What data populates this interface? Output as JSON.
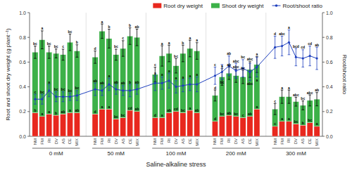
{
  "chart_data": {
    "type": "bar",
    "stacked": true,
    "categories": [
      "NM",
      "FM",
      "RI",
      "DV",
      "AS",
      "CE",
      "MIX",
      "NM",
      "FM",
      "RI",
      "DV",
      "AS",
      "CE",
      "MIX",
      "NM",
      "FM",
      "RI",
      "DV",
      "AS",
      "CE",
      "MIX",
      "NM",
      "FM",
      "RI",
      "DV",
      "AS",
      "CE",
      "MIX",
      "NM",
      "FM",
      "RI",
      "DV",
      "AS",
      "CE",
      "MIX"
    ],
    "groups": [
      "0 mM",
      "50 mM",
      "100 mM",
      "200 mM",
      "300 mM"
    ],
    "x_label": "Saline-alkaline stress",
    "y_label": "Root and shoot dry weight (g plant⁻¹)",
    "y2_label": "Root/shoot ratio",
    "ylim": [
      0,
      1
    ],
    "yticks": [
      {
        "value": 0,
        "label": "0.0"
      },
      0.2,
      0.4,
      0.6,
      0.8,
      {
        "value": 1,
        "label": "1.0"
      }
    ],
    "y2lim": [
      0,
      1
    ],
    "y2ticks": [
      {
        "value": 0,
        "label": "0.0"
      },
      0.2,
      0.4,
      0.6,
      0.8,
      {
        "value": 1,
        "label": "1.0"
      }
    ],
    "legend": "upper right",
    "series": [
      {
        "name": "Root dry weight",
        "color": "#e8281e",
        "values": [
          0.19,
          0.16,
          0.18,
          0.17,
          0.18,
          0.19,
          0.19,
          0.18,
          0.22,
          0.22,
          0.14,
          0.15,
          0.21,
          0.2,
          0.15,
          0.15,
          0.19,
          0.2,
          0.19,
          0.21,
          0.19,
          0.12,
          0.16,
          0.17,
          0.16,
          0.15,
          0.16,
          0.22,
          0.08,
          0.12,
          0.12,
          0.1,
          0.09,
          0.11,
          0.08
        ],
        "letters": [
          "b",
          "a",
          "a",
          "b",
          "ab",
          "a",
          "ab",
          "d",
          "a",
          "a",
          "bc",
          "bc",
          "cd",
          "ab",
          "d",
          "a",
          "ab",
          "cd",
          "bc",
          "a",
          "ab",
          "d",
          "bc",
          "ab",
          "bc",
          "c",
          "ab",
          "a",
          "c",
          "a",
          "a",
          "bc",
          "b",
          "bc",
          "a"
        ]
      },
      {
        "name": "Shoot dry weight",
        "color": "#3cb148",
        "values": [
          0.49,
          0.62,
          0.5,
          0.5,
          0.48,
          0.57,
          0.5,
          0.46,
          0.63,
          0.57,
          0.52,
          0.56,
          0.6,
          0.6,
          0.35,
          0.5,
          0.48,
          0.37,
          0.48,
          0.5,
          0.5,
          0.21,
          0.32,
          0.34,
          0.33,
          0.33,
          0.38,
          0.36,
          0.14,
          0.2,
          0.2,
          0.18,
          0.16,
          0.18,
          0.22
        ],
        "errors": [
          0.05,
          0.072801,
          0.05,
          0.036056,
          0.044721,
          0.067082,
          0.05,
          0.05,
          0.05831,
          0.076158,
          0.044721,
          0.063246,
          0.067082,
          0.067082,
          0.05831,
          0.082462,
          0.067082,
          0.05831,
          0.067082,
          0.067082,
          0.067082,
          0.044721,
          0.067082,
          0.05,
          0.053852,
          0.053852,
          0.063246,
          0.064031,
          0.044721,
          0.053852,
          0.053852,
          0.036056,
          0.036056,
          0.044721,
          0.053852
        ],
        "letters": [
          "bc",
          "a",
          "bc",
          "bc",
          "c",
          "bc",
          "b",
          "d",
          "a",
          "b",
          "bc",
          "c",
          "b",
          "ab",
          "c",
          "a",
          "a",
          "bc",
          "b",
          "a",
          "a",
          "d",
          "a",
          "ab",
          "abc",
          "bc",
          "abc",
          "a",
          "c",
          "a",
          "a",
          "abc",
          "bc",
          "abc",
          "ab"
        ]
      },
      {
        "name": "Root/shoot ratio",
        "type": "line",
        "axis": "y2",
        "marker": "circle",
        "color": "#1e3fbe",
        "values": [
          0.3,
          0.3,
          0.37,
          0.32,
          0.32,
          0.32,
          0.33,
          0.38,
          0.37,
          0.42,
          0.38,
          0.37,
          0.37,
          0.38,
          0.43,
          0.43,
          0.45,
          0.4,
          0.41,
          0.42,
          0.42,
          0.49,
          0.52,
          0.57,
          0.53,
          0.55,
          0.52,
          0.56,
          0.72,
          0.73,
          0.76,
          0.64,
          0.63,
          0.65,
          0.63
        ],
        "errors": [
          0.04,
          0.04,
          0.05,
          0.04,
          0.04,
          0.03,
          0.04,
          0.05,
          0.04,
          0.05,
          0.04,
          0.04,
          0.05,
          0.04,
          0.06,
          0.05,
          0.06,
          0.05,
          0.05,
          0.05,
          0.06,
          0.07,
          0.06,
          0.08,
          0.06,
          0.07,
          0.07,
          0.08,
          0.09,
          0.08,
          0.1,
          0.07,
          0.07,
          0.08,
          0.09
        ],
        "letters": [
          "c",
          "bc",
          "a",
          "bc",
          "bc",
          "bc",
          "bc",
          "ab",
          "ab",
          "a",
          "ab",
          "ab",
          "b",
          "ab",
          "a",
          "a",
          "a",
          "a",
          "a",
          "a",
          "a",
          "c",
          "bc",
          "ab",
          "abc",
          "bc",
          "abc",
          "a",
          "d",
          "abc",
          "a",
          "bcd",
          "cd",
          "cd",
          "ab"
        ]
      }
    ]
  }
}
